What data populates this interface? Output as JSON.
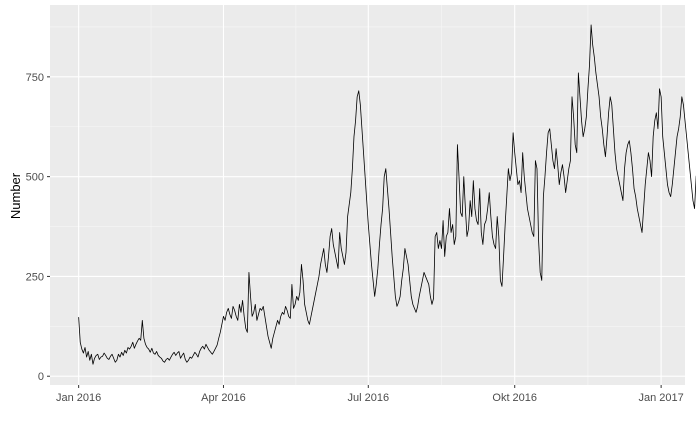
{
  "chart_data": {
    "type": "line",
    "title": "",
    "xlabel": "",
    "ylabel": "Number",
    "x_ticks": [
      "Jan 2016",
      "Apr 2016",
      "Jul 2016",
      "Okt 2016",
      "Jan 2017"
    ],
    "y_ticks": [
      "0",
      "250",
      "500",
      "750"
    ],
    "xlim": [
      "2016-01-01",
      "2016-12-31"
    ],
    "ylim": [
      0,
      880
    ],
    "grid": true,
    "background_color": "#ebebeb",
    "line_color": "#000000",
    "series": [
      {
        "x_start": "2016-01-01",
        "x_step": "1 day",
        "values": [
          148,
          85,
          68,
          58,
          72,
          48,
          62,
          40,
          55,
          30,
          45,
          52,
          55,
          42,
          48,
          50,
          58,
          52,
          45,
          42,
          50,
          55,
          45,
          35,
          40,
          55,
          48,
          60,
          52,
          65,
          58,
          72,
          68,
          75,
          85,
          70,
          80,
          88,
          95,
          90,
          140,
          95,
          80,
          72,
          68,
          60,
          70,
          58,
          55,
          62,
          52,
          48,
          45,
          38,
          35,
          42,
          45,
          40,
          48,
          55,
          60,
          52,
          58,
          62,
          45,
          52,
          58,
          42,
          35,
          40,
          48,
          45,
          52,
          60,
          55,
          48,
          62,
          70,
          75,
          68,
          80,
          72,
          65,
          60,
          55,
          62,
          70,
          78,
          95,
          110,
          130,
          150,
          140,
          160,
          170,
          155,
          145,
          175,
          165,
          150,
          140,
          180,
          160,
          190,
          150,
          120,
          110,
          260,
          200,
          150,
          160,
          180,
          140,
          155,
          170,
          165,
          175,
          150,
          125,
          100,
          85,
          70,
          95,
          110,
          125,
          140,
          130,
          150,
          160,
          155,
          175,
          165,
          150,
          145,
          230,
          170,
          180,
          200,
          190,
          210,
          280,
          240,
          180,
          160,
          140,
          130,
          150,
          170,
          190,
          210,
          230,
          250,
          280,
          300,
          320,
          280,
          260,
          300,
          350,
          370,
          330,
          310,
          290,
          270,
          360,
          320,
          300,
          280,
          310,
          400,
          430,
          460,
          520,
          600,
          640,
          700,
          715,
          680,
          620,
          560,
          500,
          440,
          380,
          330,
          280,
          240,
          200,
          230,
          270,
          330,
          380,
          420,
          500,
          520,
          470,
          420,
          360,
          300,
          250,
          200,
          175,
          185,
          200,
          240,
          270,
          320,
          300,
          280,
          240,
          200,
          180,
          170,
          160,
          175,
          200,
          220,
          240,
          260,
          250,
          240,
          230,
          200,
          180,
          195,
          350,
          360,
          320,
          340,
          320,
          390,
          300,
          350,
          360,
          420,
          360,
          380,
          330,
          350,
          580,
          500,
          410,
          400,
          500,
          420,
          350,
          370,
          440,
          400,
          490,
          420,
          390,
          380,
          470,
          360,
          330,
          380,
          390,
          420,
          460,
          400,
          350,
          330,
          320,
          400,
          350,
          240,
          225,
          300,
          380,
          450,
          520,
          490,
          510,
          610,
          560,
          520,
          480,
          490,
          460,
          560,
          500,
          460,
          420,
          400,
          380,
          360,
          350,
          540,
          520,
          340,
          260,
          240,
          450,
          500,
          560,
          610,
          620,
          580,
          540,
          520,
          570,
          530,
          480,
          510,
          530,
          500,
          460,
          490,
          520,
          540,
          700,
          650,
          580,
          560,
          760,
          700,
          640,
          600,
          620,
          650,
          720,
          780,
          880,
          830,
          800,
          760,
          730,
          700,
          650,
          620,
          580,
          550,
          600,
          660,
          700,
          680,
          620,
          560,
          520,
          500,
          480,
          460,
          440,
          520,
          560,
          580,
          590,
          560,
          520,
          470,
          450,
          420,
          400,
          380,
          360,
          420,
          480,
          520,
          560,
          540,
          500,
          600,
          640,
          660,
          620,
          720,
          700,
          600,
          560,
          520,
          480,
          460,
          450,
          480,
          520,
          560,
          600,
          620,
          650,
          700,
          680,
          640,
          600,
          560,
          520,
          480,
          440,
          420,
          500,
          520,
          540,
          560,
          520,
          500,
          480,
          460,
          400,
          380,
          300,
          320,
          380,
          350,
          380,
          460,
          470,
          430,
          420,
          460,
          430,
          400,
          500,
          450,
          480,
          500,
          540,
          520,
          470,
          560,
          800,
          810,
          820,
          780,
          760,
          720,
          650,
          560,
          450,
          430,
          440,
          360,
          280,
          250,
          300,
          330,
          380,
          290,
          280,
          260,
          300,
          350,
          390,
          340,
          310,
          280,
          250,
          220,
          280,
          300,
          350,
          330,
          300,
          280,
          260,
          240,
          220,
          280,
          300,
          340,
          380,
          420,
          450,
          460,
          400,
          320,
          250,
          200,
          180,
          160,
          140,
          130,
          120,
          115,
          120,
          110,
          115,
          105,
          110,
          120,
          100,
          110,
          115,
          90,
          70,
          65,
          60,
          65,
          80,
          75,
          70,
          85,
          100,
          90,
          80,
          70,
          60,
          75,
          90,
          100,
          130,
          110,
          90,
          80,
          60,
          70,
          85,
          65,
          55,
          70,
          75,
          60,
          55,
          60,
          65,
          50,
          45,
          55,
          60,
          45,
          50,
          55,
          40,
          45,
          50,
          55,
          60,
          50,
          45,
          40,
          45,
          30,
          35,
          45,
          55,
          50,
          60,
          70,
          55,
          40,
          30,
          45,
          60,
          55,
          50,
          45,
          40,
          35,
          40,
          30,
          25,
          35,
          45,
          40,
          50,
          60,
          55,
          45,
          50,
          65,
          75,
          90,
          80,
          70,
          60,
          80,
          100,
          95,
          110,
          120,
          300,
          480,
          420,
          350,
          280,
          230,
          190,
          160,
          140,
          130,
          150,
          170,
          140,
          130,
          125,
          120,
          135,
          140,
          130,
          140
        ]
      }
    ]
  }
}
